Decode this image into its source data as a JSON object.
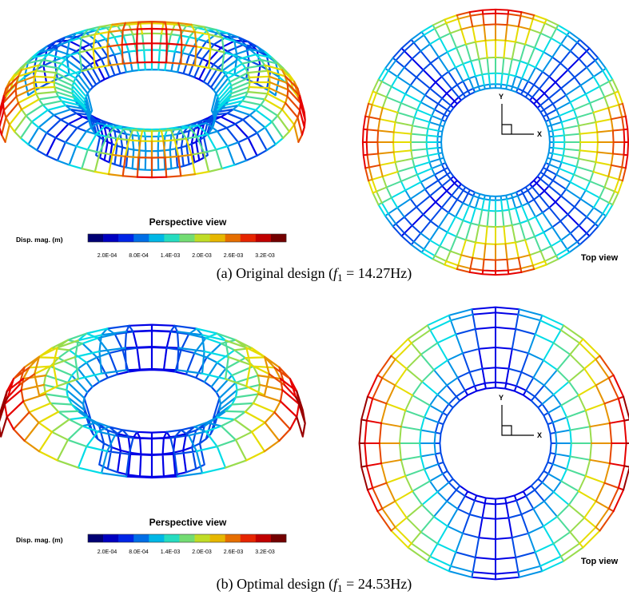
{
  "panels": [
    {
      "perspective_label": "Perspective view",
      "colorbar_title": "Disp. mag. (m)",
      "colorbar_ticks": [
        "2.0E-04",
        "8.0E-04",
        "1.4E-03",
        "2.0E-03",
        "2.6E-03",
        "3.2E-03"
      ],
      "axis_y": "Y",
      "axis_x": "X",
      "top_view_label": "Top view",
      "caption": {
        "prefix": "(a) Original design (",
        "symbol": "f",
        "subscript": "1",
        "suffix": " = 14.27Hz)"
      }
    },
    {
      "perspective_label": "Perspective view",
      "colorbar_title": "Disp. mag. (m)",
      "colorbar_ticks": [
        "2.0E-04",
        "8.0E-04",
        "1.4E-03",
        "2.0E-03",
        "2.6E-03",
        "3.2E-03"
      ],
      "axis_y": "Y",
      "axis_x": "X",
      "top_view_label": "Top view",
      "caption": {
        "prefix": "(b) Optimal design (",
        "symbol": "f",
        "subscript": "1",
        "suffix": " = 24.53Hz)"
      }
    }
  ]
}
